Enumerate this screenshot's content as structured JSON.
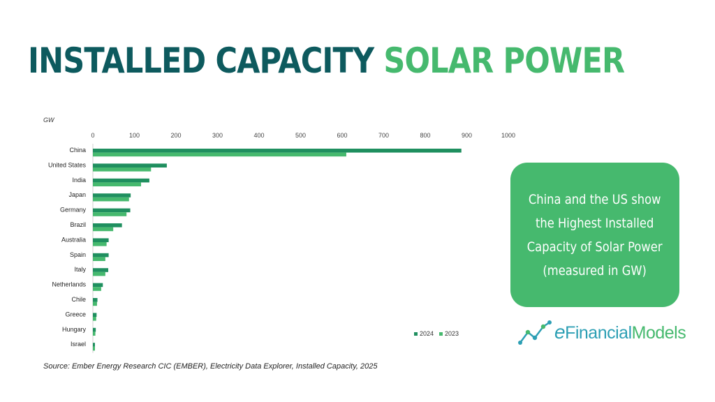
{
  "title": {
    "part1": "INSTALLED CAPACITY",
    "part2": "SOLAR POWER"
  },
  "callout": {
    "lines": [
      "China and the US show",
      "the Highest Installed",
      "Capacity of Solar Power",
      "(measured in GW)"
    ]
  },
  "logo": {
    "e": "e",
    "financial": "Financial",
    "models": "Models",
    "icon": "chart-line-icon"
  },
  "source": "Source: Ember Energy Research CIC (EMBER), Electricity Data Explorer, Installed Capacity, 2025",
  "colors": {
    "dark_teal": "#0d5a5e",
    "green_2024": "#1f8f5f",
    "green_2023": "#46b96e"
  },
  "chart_data": {
    "type": "bar",
    "orientation": "horizontal",
    "unit_label": "GW",
    "xlim": [
      0,
      1000
    ],
    "ticks": [
      0,
      100,
      200,
      300,
      400,
      500,
      600,
      700,
      800,
      900,
      1000
    ],
    "categories": [
      "China",
      "United States",
      "India",
      "Japan",
      "Germany",
      "Brazil",
      "Australia",
      "Spain",
      "Italy",
      "Netherlands",
      "Chile",
      "Greece",
      "Hungary",
      "Israel"
    ],
    "series": [
      {
        "name": "2024",
        "color": "#1f8f5f",
        "values": [
          887,
          178,
          136,
          91,
          90,
          70,
          38,
          38,
          37,
          24,
          11,
          9,
          7,
          5
        ]
      },
      {
        "name": "2023",
        "color": "#46b96e",
        "values": [
          610,
          140,
          116,
          87,
          81,
          49,
          33,
          30,
          30,
          20,
          10,
          8,
          6,
          5
        ]
      }
    ],
    "legend_position": "bottom-right",
    "grid": false
  }
}
